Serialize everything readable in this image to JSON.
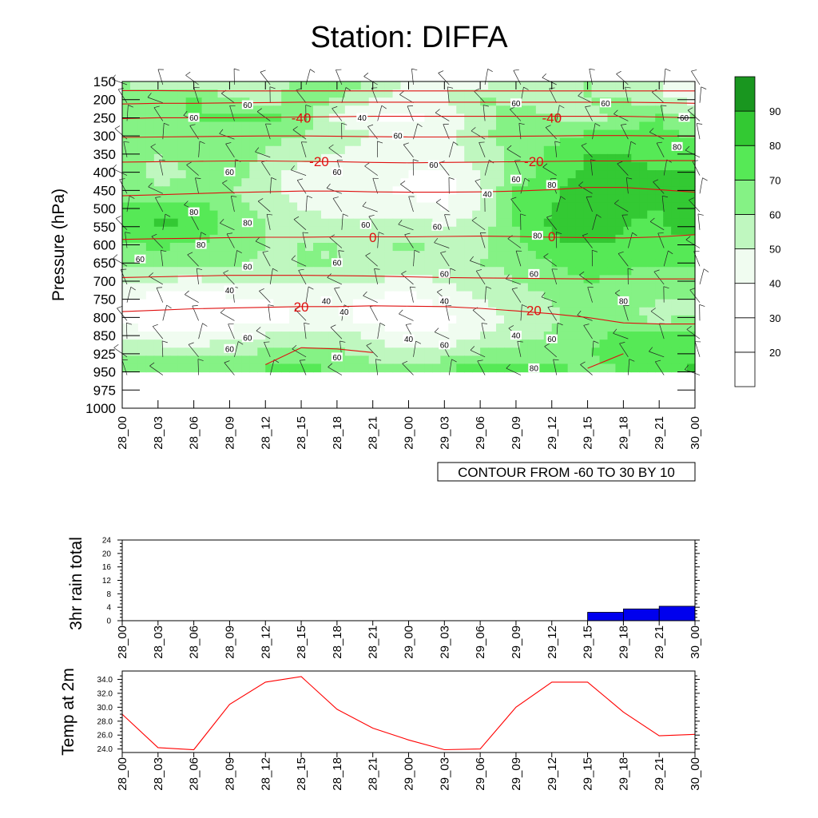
{
  "title": "Station: DIFFA",
  "time_labels": [
    "28_00",
    "28_03",
    "28_06",
    "28_09",
    "28_12",
    "28_15",
    "28_18",
    "28_21",
    "29_00",
    "29_03",
    "29_06",
    "29_09",
    "29_12",
    "29_15",
    "29_18",
    "29_21",
    "30_00"
  ],
  "colors": {
    "bin_fills": [
      "#ffffff",
      "#ffffff",
      "#ffffff",
      "#f0fcf0",
      "#bff7bf",
      "#85f285",
      "#56e956",
      "#33c933",
      "#19961f"
    ],
    "temp_contour": "#e01010",
    "rain_bar": "#0000ee",
    "temp_line": "#ff0000",
    "axis": "#000000"
  },
  "chart_data": [
    {
      "type": "heatmap",
      "title": "Station: DIFFA",
      "ylabel": "Pressure (hPa)",
      "xlabel": "",
      "y_levels": [
        150,
        200,
        250,
        300,
        350,
        400,
        450,
        500,
        550,
        600,
        650,
        700,
        750,
        800,
        850,
        925,
        950,
        975,
        1000
      ],
      "y_range": [
        150,
        1000
      ],
      "fill_variable_levels": [
        150,
        200,
        250,
        300,
        350,
        400,
        450,
        500,
        550,
        600,
        650,
        700,
        750,
        800,
        850,
        925,
        950
      ],
      "colorbar": {
        "bins": [
          [
            0,
            20
          ],
          [
            20,
            30
          ],
          [
            30,
            40
          ],
          [
            40,
            50
          ],
          [
            50,
            60
          ],
          [
            60,
            70
          ],
          [
            70,
            80
          ],
          [
            80,
            90
          ],
          [
            90,
            100
          ]
        ],
        "labels": [
          "20",
          "30",
          "40",
          "50",
          "60",
          "70",
          "80",
          "90"
        ]
      },
      "fill_values": [
        [
          60,
          55,
          50,
          50,
          55,
          62,
          65,
          60,
          50,
          45,
          45,
          55,
          60,
          60,
          55,
          50,
          50
        ],
        [
          62,
          65,
          72,
          62,
          55,
          65,
          60,
          50,
          45,
          50,
          62,
          58,
          55,
          60,
          62,
          50,
          48
        ],
        [
          60,
          65,
          70,
          72,
          75,
          65,
          45,
          40,
          38,
          42,
          55,
          65,
          62,
          55,
          65,
          70,
          60
        ],
        [
          68,
          62,
          65,
          65,
          62,
          60,
          58,
          50,
          42,
          45,
          58,
          65,
          68,
          72,
          75,
          72,
          70
        ],
        [
          65,
          60,
          62,
          65,
          60,
          55,
          50,
          45,
          45,
          45,
          55,
          62,
          72,
          80,
          80,
          78,
          75
        ],
        [
          62,
          58,
          60,
          65,
          55,
          45,
          40,
          45,
          40,
          38,
          50,
          65,
          75,
          82,
          82,
          80,
          80
        ],
        [
          65,
          60,
          62,
          60,
          55,
          45,
          40,
          42,
          38,
          35,
          50,
          70,
          78,
          85,
          82,
          82,
          85
        ],
        [
          70,
          78,
          75,
          65,
          58,
          50,
          45,
          45,
          45,
          40,
          50,
          72,
          80,
          88,
          82,
          80,
          88
        ],
        [
          75,
          82,
          80,
          68,
          60,
          55,
          55,
          55,
          55,
          50,
          55,
          70,
          82,
          88,
          80,
          78,
          85
        ],
        [
          70,
          72,
          70,
          65,
          60,
          60,
          60,
          58,
          62,
          58,
          58,
          68,
          78,
          80,
          78,
          75,
          78
        ],
        [
          62,
          60,
          60,
          62,
          58,
          60,
          60,
          58,
          55,
          58,
          60,
          62,
          70,
          75,
          72,
          70,
          70
        ],
        [
          55,
          50,
          48,
          52,
          50,
          50,
          52,
          50,
          48,
          50,
          55,
          60,
          65,
          70,
          68,
          68,
          65
        ],
        [
          40,
          35,
          32,
          38,
          40,
          45,
          42,
          38,
          35,
          45,
          50,
          55,
          60,
          65,
          62,
          60,
          60
        ],
        [
          38,
          32,
          30,
          32,
          35,
          40,
          42,
          35,
          30,
          35,
          45,
          52,
          58,
          65,
          60,
          58,
          60
        ],
        [
          45,
          42,
          40,
          45,
          50,
          52,
          55,
          48,
          40,
          42,
          50,
          55,
          62,
          68,
          72,
          70,
          72
        ],
        [
          58,
          60,
          58,
          60,
          62,
          65,
          62,
          58,
          52,
          55,
          62,
          65,
          68,
          70,
          72,
          78,
          75
        ],
        [
          70,
          72,
          72,
          70,
          72,
          75,
          70,
          62,
          65,
          70,
          78,
          78,
          72,
          68,
          70,
          78,
          82
        ]
      ],
      "contour_labels_rh": [
        {
          "t": 3.5,
          "p": 215,
          "text": "60"
        },
        {
          "t": 2.0,
          "p": 250,
          "text": "60"
        },
        {
          "t": 6.7,
          "p": 250,
          "text": "40"
        },
        {
          "t": 7.7,
          "p": 300,
          "text": "60"
        },
        {
          "t": 11.0,
          "p": 210,
          "text": "60"
        },
        {
          "t": 13.5,
          "p": 210,
          "text": "60"
        },
        {
          "t": 15.7,
          "p": 250,
          "text": "60"
        },
        {
          "t": 15.5,
          "p": 330,
          "text": "80"
        },
        {
          "t": 3.0,
          "p": 400,
          "text": "60"
        },
        {
          "t": 6.0,
          "p": 400,
          "text": "60"
        },
        {
          "t": 8.7,
          "p": 380,
          "text": "60"
        },
        {
          "t": 10.2,
          "p": 460,
          "text": "40"
        },
        {
          "t": 11.0,
          "p": 420,
          "text": "60"
        },
        {
          "t": 12.0,
          "p": 435,
          "text": "80"
        },
        {
          "t": 2.0,
          "p": 510,
          "text": "80"
        },
        {
          "t": 3.5,
          "p": 540,
          "text": "80"
        },
        {
          "t": 2.2,
          "p": 600,
          "text": "80"
        },
        {
          "t": 6.8,
          "p": 545,
          "text": "60"
        },
        {
          "t": 8.8,
          "p": 550,
          "text": "60"
        },
        {
          "t": 11.6,
          "p": 575,
          "text": "80"
        },
        {
          "t": 0.5,
          "p": 640,
          "text": "60"
        },
        {
          "t": 3.5,
          "p": 660,
          "text": "60"
        },
        {
          "t": 6.0,
          "p": 650,
          "text": "60"
        },
        {
          "t": 9.0,
          "p": 680,
          "text": "60"
        },
        {
          "t": 11.5,
          "p": 680,
          "text": "60"
        },
        {
          "t": 3.0,
          "p": 725,
          "text": "40"
        },
        {
          "t": 5.7,
          "p": 755,
          "text": "40"
        },
        {
          "t": 6.2,
          "p": 785,
          "text": "40"
        },
        {
          "t": 9.0,
          "p": 755,
          "text": "40"
        },
        {
          "t": 14.0,
          "p": 755,
          "text": "80"
        },
        {
          "t": 3.5,
          "p": 860,
          "text": "60"
        },
        {
          "t": 3.0,
          "p": 905,
          "text": "60"
        },
        {
          "t": 8.0,
          "p": 865,
          "text": "40"
        },
        {
          "t": 9.0,
          "p": 890,
          "text": "60"
        },
        {
          "t": 11.0,
          "p": 850,
          "text": "40"
        },
        {
          "t": 12.0,
          "p": 865,
          "text": "60"
        },
        {
          "t": 6.0,
          "p": 930,
          "text": "60"
        },
        {
          "t": 11.5,
          "p": 945,
          "text": "80"
        }
      ],
      "temp_contours": [
        {
          "p": [
            175,
            175,
            176,
            176,
            176,
            176,
            176,
            176,
            176,
            176,
            176,
            176,
            176,
            176,
            176,
            176,
            176
          ]
        },
        {
          "p": [
            212,
            210,
            210,
            209,
            208,
            207,
            207,
            207,
            207,
            207,
            207,
            207,
            207,
            207,
            207,
            208,
            210
          ]
        },
        {
          "p": [
            252,
            250,
            250,
            250,
            249,
            248,
            247,
            246,
            246,
            246,
            246,
            246,
            246,
            246,
            246,
            248,
            250
          ]
        },
        {
          "p": [
            304,
            303,
            302,
            301,
            300,
            300,
            301,
            302,
            303,
            303,
            302,
            301,
            300,
            299,
            299,
            300,
            301
          ]
        },
        {
          "p": [
            372,
            371,
            370,
            369,
            369,
            370,
            371,
            373,
            374,
            373,
            372,
            371,
            370,
            369,
            369,
            368,
            368
          ]
        },
        {
          "p": [
            465,
            462,
            459,
            456,
            454,
            452,
            452,
            454,
            455,
            455,
            454,
            452,
            448,
            442,
            442,
            448,
            455
          ]
        },
        {
          "p": [
            585,
            583,
            582,
            580,
            579,
            579,
            578,
            578,
            578,
            577,
            576,
            577,
            579,
            580,
            581,
            578,
            572
          ]
        },
        {
          "p": [
            690,
            688,
            686,
            684,
            684,
            684,
            685,
            686,
            688,
            690,
            691,
            692,
            693,
            694,
            694,
            694,
            694
          ]
        },
        {
          "p": [
            784,
            780,
            776,
            774,
            772,
            770,
            770,
            768,
            769,
            770,
            775,
            782,
            790,
            800,
            815,
            818,
            818
          ]
        },
        {
          "p": [
            null,
            null,
            null,
            null,
            940,
            900,
            905,
            920,
            null,
            null,
            null,
            null,
            null,
            null,
            null,
            null,
            null
          ]
        },
        {
          "p": [
            null,
            null,
            null,
            null,
            null,
            null,
            null,
            null,
            null,
            null,
            null,
            null,
            null,
            945,
            925,
            null,
            null
          ]
        }
      ],
      "temp_contour_labels": [
        {
          "t": 5.0,
          "p": 250,
          "text": "-40"
        },
        {
          "t": 12.0,
          "p": 250,
          "text": "-40"
        },
        {
          "t": 5.5,
          "p": 370,
          "text": "-20"
        },
        {
          "t": 11.5,
          "p": 370,
          "text": "-20"
        },
        {
          "t": 7.0,
          "p": 579,
          "text": "0"
        },
        {
          "t": 12.0,
          "p": 577,
          "text": "0"
        },
        {
          "t": 5.0,
          "p": 770,
          "text": "20"
        },
        {
          "t": 11.5,
          "p": 780,
          "text": "20"
        }
      ],
      "contour_info": "CONTOUR FROM -60 TO 30 BY 10"
    },
    {
      "type": "bar",
      "ylabel": "3hr rain total",
      "categories": [
        "28_00",
        "28_03",
        "28_06",
        "28_09",
        "28_12",
        "28_15",
        "28_18",
        "28_21",
        "29_00",
        "29_03",
        "29_06",
        "29_09",
        "29_12",
        "29_15",
        "29_18",
        "29_21",
        "30_00"
      ],
      "values": [
        0,
        0,
        0,
        0,
        0,
        0,
        0,
        0,
        0,
        0,
        0,
        0,
        0,
        2.5,
        3.5,
        4.3,
        0.4
      ],
      "ylim": [
        0,
        24
      ],
      "yticks": [
        0,
        4,
        8,
        12,
        16,
        20,
        24
      ]
    },
    {
      "type": "line",
      "ylabel": "Temp at 2m",
      "categories": [
        "28_00",
        "28_03",
        "28_06",
        "28_09",
        "28_12",
        "28_15",
        "28_18",
        "28_21",
        "29_00",
        "29_03",
        "29_06",
        "29_09",
        "29_12",
        "29_15",
        "29_18",
        "29_21",
        "30_00"
      ],
      "values": [
        29.0,
        24.2,
        23.9,
        30.4,
        33.6,
        34.4,
        29.7,
        27.0,
        25.3,
        23.9,
        24.0,
        30.0,
        33.6,
        33.6,
        29.3,
        25.9,
        26.1
      ],
      "ylim": [
        23.5,
        35.2
      ],
      "yticks": [
        "24.0",
        "26.0",
        "28.0",
        "30.0",
        "32.0",
        "34.0"
      ]
    }
  ]
}
